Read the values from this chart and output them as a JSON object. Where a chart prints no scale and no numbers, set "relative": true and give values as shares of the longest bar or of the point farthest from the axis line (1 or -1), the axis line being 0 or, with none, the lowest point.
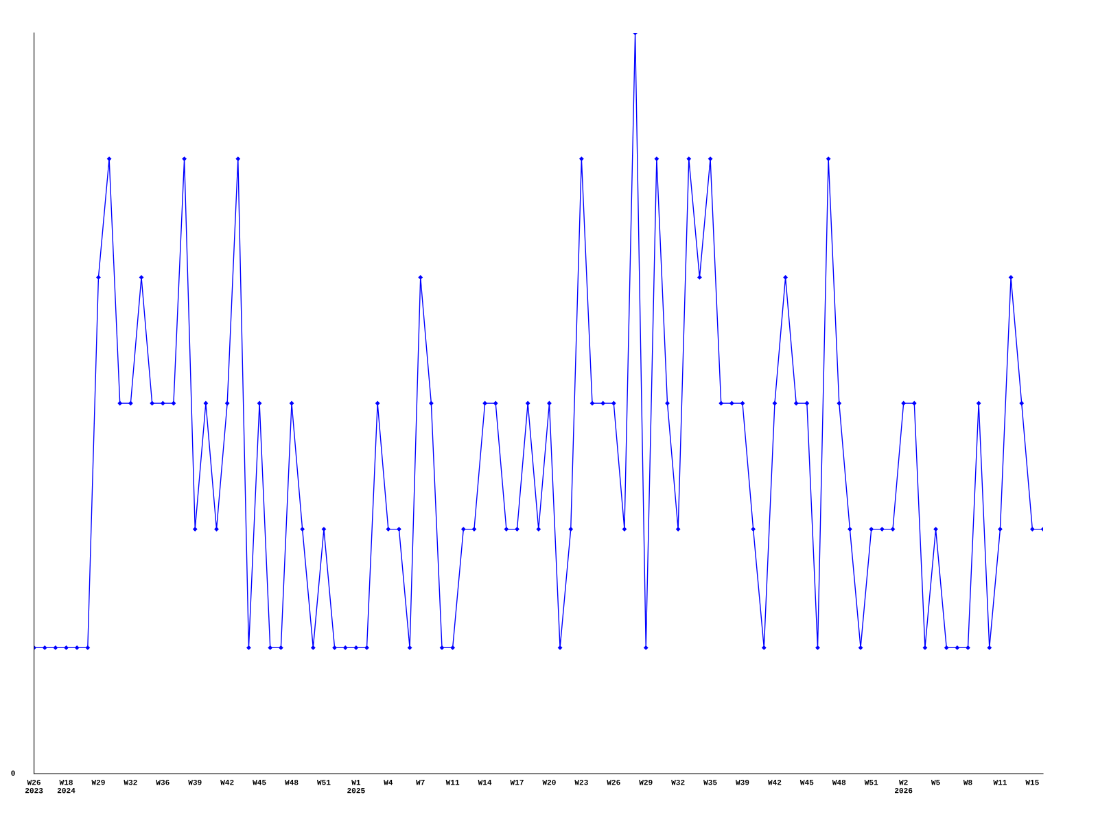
{
  "chart_data": {
    "type": "line",
    "relative": true,
    "marker": "diamond",
    "line_style": "solid",
    "categories": [
      "W26\n2023",
      null,
      null,
      "W18\n2024",
      null,
      null,
      "W29",
      null,
      null,
      "W32",
      null,
      null,
      "W36",
      null,
      null,
      "W39",
      null,
      null,
      "W42",
      null,
      null,
      "W45",
      null,
      null,
      "W48",
      null,
      null,
      "W51",
      null,
      null,
      "W1\n2025",
      null,
      null,
      "W4",
      null,
      null,
      "W7",
      null,
      null,
      "W11",
      null,
      null,
      "W14",
      null,
      null,
      "W17",
      null,
      null,
      "W20",
      null,
      null,
      "W23",
      null,
      null,
      "W26",
      null,
      null,
      "W29",
      null,
      null,
      "W32",
      null,
      null,
      "W35",
      null,
      null,
      "W39",
      null,
      null,
      "W42",
      null,
      null,
      "W45",
      null,
      null,
      "W48",
      null,
      null,
      "W51",
      null,
      null,
      "W2\n2026",
      null,
      null,
      "W5",
      null,
      null,
      "W8",
      null,
      null,
      "W11",
      null,
      null,
      "W15",
      null
    ],
    "series": [
      {
        "color": "#0000ff",
        "values": [
          0.17,
          0.17,
          0.17,
          0.17,
          0.17,
          0.17,
          0.67,
          0.83,
          0.5,
          0.5,
          0.67,
          0.5,
          0.5,
          0.5,
          0.83,
          0.33,
          0.5,
          0.33,
          0.5,
          0.83,
          0.17,
          0.5,
          0.17,
          0.17,
          0.5,
          0.33,
          0.17,
          0.33,
          0.17,
          0.17,
          0.17,
          0.17,
          0.5,
          0.33,
          0.33,
          0.17,
          0.67,
          0.5,
          0.17,
          0.17,
          0.33,
          0.33,
          0.5,
          0.5,
          0.33,
          0.33,
          0.5,
          0.33,
          0.5,
          0.17,
          0.33,
          0.83,
          0.5,
          0.5,
          0.5,
          0.33,
          1,
          0.17,
          0.83,
          0.5,
          0.33,
          0.83,
          0.67,
          0.83,
          0.5,
          0.5,
          0.5,
          0.33,
          0.17,
          0.5,
          0.67,
          0.5,
          0.5,
          0.17,
          0.83,
          0.5,
          0.33,
          0.17,
          0.33,
          0.33,
          0.33,
          0.5,
          0.5,
          0.17,
          0.33,
          0.17,
          0.17,
          0.17,
          0.5,
          0.17,
          0.33,
          0.67,
          0.5,
          0.33,
          0.33
        ]
      }
    ],
    "annotations": [
      "0"
    ]
  }
}
